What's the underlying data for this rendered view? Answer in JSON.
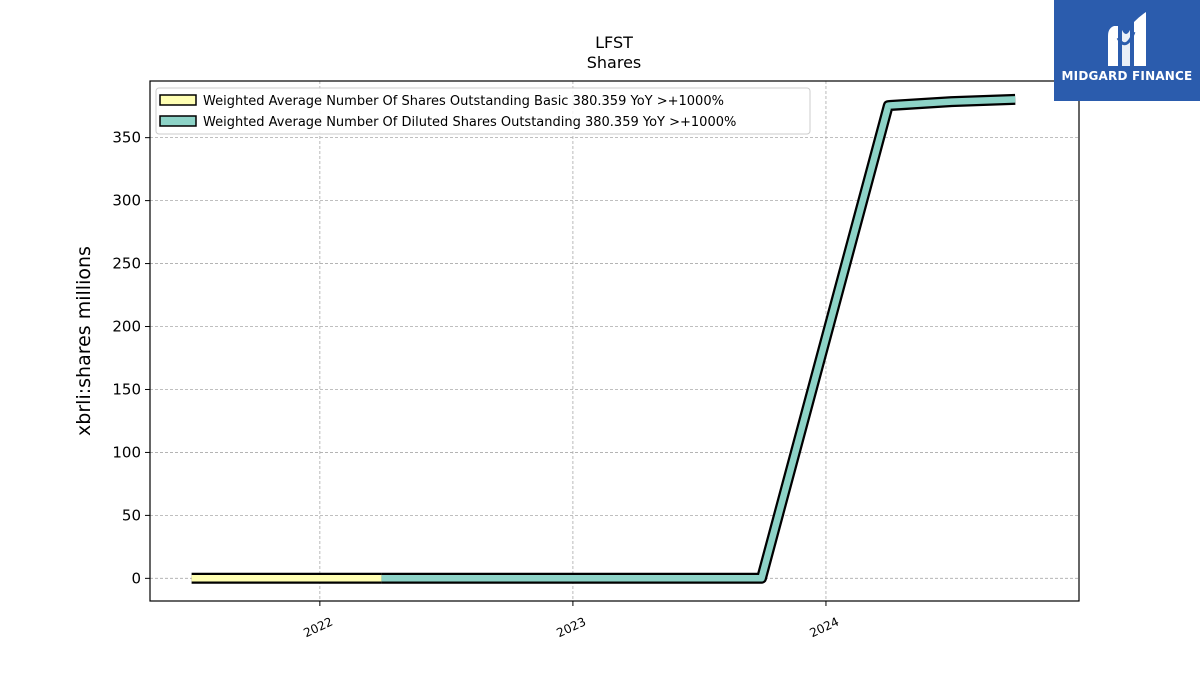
{
  "chart_data": {
    "type": "line",
    "title": "LFST",
    "subtitle": "Shares",
    "ylabel": "xbrli:shares millions",
    "xlabel": "",
    "ylim": [
      -18,
      395
    ],
    "yticks": [
      0,
      50,
      100,
      150,
      200,
      250,
      300,
      350
    ],
    "xlim": [
      "2021-05-01",
      "2024-12-31"
    ],
    "xticks": [
      "2022",
      "2023",
      "2024"
    ],
    "grid": true,
    "legend": "top-left",
    "series": [
      {
        "name": "Weighted Average Number Of Shares Outstanding Basic  380.359 YoY >+1000%",
        "color": "#ffffb3",
        "x": [
          "2021-06-30",
          "2021-09-30",
          "2021-12-31",
          "2022-03-31"
        ],
        "y": [
          0,
          0,
          0,
          0
        ]
      },
      {
        "name": "Weighted Average Number Of Diluted Shares Outstanding  380.359 YoY >+1000%",
        "color": "#8dd3c7",
        "x": [
          "2022-03-31",
          "2022-06-30",
          "2022-09-30",
          "2022-12-31",
          "2023-03-31",
          "2023-06-30",
          "2023-09-30",
          "2024-03-31",
          "2024-06-30",
          "2024-09-30"
        ],
        "y": [
          0,
          0,
          0,
          0,
          0,
          0,
          0,
          375.5,
          378.6,
          380.359
        ]
      }
    ]
  },
  "logo": {
    "text": "MIDGARD FINANCE"
  }
}
